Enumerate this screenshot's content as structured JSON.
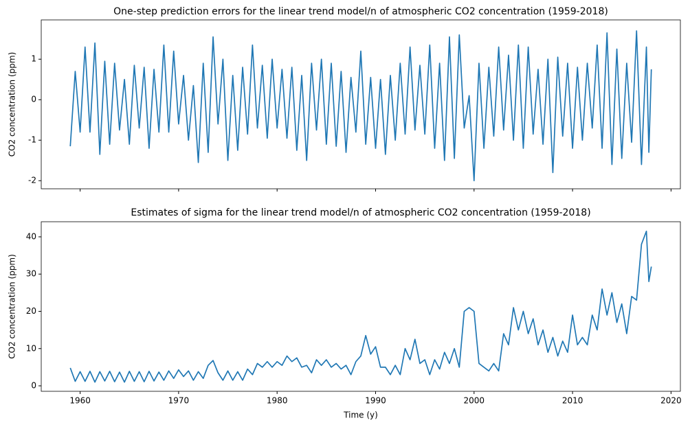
{
  "chart_data": [
    {
      "type": "line",
      "title": "One-step prediction errors for the linear trend model/n of atmospheric CO2 concentration (1959-2018)",
      "ylabel": "CO2 concentration (ppm)",
      "color": "#1f77b4",
      "xlim": [
        1956.05,
        2020.95
      ],
      "xticks": [
        1960,
        1970,
        1980,
        1990,
        2000,
        2010,
        2020
      ],
      "ylim": [
        -2.2,
        1.97
      ],
      "yticks": [
        -2,
        -1,
        0,
        1
      ],
      "x": [
        1959,
        1959.5,
        1960,
        1960.5,
        1961,
        1961.5,
        1962,
        1962.5,
        1963,
        1963.5,
        1964,
        1964.5,
        1965,
        1965.5,
        1966,
        1966.5,
        1967,
        1967.5,
        1968,
        1968.5,
        1969,
        1969.5,
        1970,
        1970.5,
        1971,
        1971.5,
        1972,
        1972.5,
        1973,
        1973.5,
        1974,
        1974.5,
        1975,
        1975.5,
        1976,
        1976.5,
        1977,
        1977.5,
        1978,
        1978.5,
        1979,
        1979.5,
        1980,
        1980.5,
        1981,
        1981.5,
        1982,
        1982.5,
        1983,
        1983.5,
        1984,
        1984.5,
        1985,
        1985.5,
        1986,
        1986.5,
        1987,
        1987.5,
        1988,
        1988.5,
        1989,
        1989.5,
        1990,
        1990.5,
        1991,
        1991.5,
        1992,
        1992.5,
        1993,
        1993.5,
        1994,
        1994.5,
        1995,
        1995.5,
        1996,
        1996.5,
        1997,
        1997.5,
        1998,
        1998.5,
        1999,
        1999.5,
        2000,
        2000.5,
        2001,
        2001.5,
        2002,
        2002.5,
        2003,
        2003.5,
        2004,
        2004.5,
        2005,
        2005.5,
        2006,
        2006.5,
        2007,
        2007.5,
        2008,
        2008.5,
        2009,
        2009.5,
        2010,
        2010.5,
        2011,
        2011.5,
        2012,
        2012.5,
        2013,
        2013.5,
        2014,
        2014.5,
        2015,
        2015.5,
        2016,
        2016.5,
        2017,
        2017.5,
        2017.75,
        2018
      ],
      "values": [
        -1.15,
        0.7,
        -0.8,
        1.3,
        -0.8,
        1.4,
        -1.35,
        0.95,
        -1.1,
        0.9,
        -0.75,
        0.5,
        -1.1,
        0.85,
        -0.7,
        0.8,
        -1.2,
        0.75,
        -0.8,
        1.35,
        -0.8,
        1.2,
        -0.6,
        0.6,
        -1.0,
        0.35,
        -1.55,
        0.9,
        -1.3,
        1.55,
        -0.6,
        1.0,
        -1.5,
        0.6,
        -1.25,
        0.8,
        -0.85,
        1.35,
        -0.7,
        0.85,
        -0.95,
        1.0,
        -0.7,
        0.75,
        -0.95,
        0.8,
        -1.25,
        0.6,
        -1.5,
        0.9,
        -0.75,
        1.0,
        -1.1,
        0.9,
        -1.15,
        0.7,
        -1.3,
        0.55,
        -0.8,
        1.2,
        -1.1,
        0.55,
        -1.2,
        0.5,
        -1.35,
        0.6,
        -1.0,
        0.9,
        -0.85,
        1.3,
        -0.75,
        0.85,
        -0.85,
        1.35,
        -1.2,
        0.9,
        -1.5,
        1.55,
        -1.45,
        1.6,
        -0.7,
        0.1,
        -2.0,
        0.9,
        -1.2,
        0.8,
        -0.9,
        1.3,
        -0.75,
        1.1,
        -1.0,
        1.35,
        -1.2,
        1.3,
        -0.85,
        0.75,
        -1.1,
        1.0,
        -1.8,
        1.05,
        -0.9,
        0.9,
        -1.2,
        0.8,
        -1.0,
        0.9,
        -0.7,
        1.35,
        -1.2,
        1.65,
        -1.6,
        1.25,
        -1.45,
        0.9,
        -1.05,
        1.7,
        -1.6,
        1.3,
        -1.3,
        0.75
      ]
    },
    {
      "type": "line",
      "title": "Estimates of sigma for the linear trend model/n of atmospheric CO2 concentration (1959-2018)",
      "ylabel": "CO2 concentration (ppm)",
      "xlabel": "Time (y)",
      "color": "#1f77b4",
      "xlim": [
        1956.05,
        2020.95
      ],
      "xticks": [
        1960,
        1970,
        1980,
        1990,
        2000,
        2010,
        2020
      ],
      "ylim": [
        -1.47,
        44.05
      ],
      "yticks": [
        0,
        10,
        20,
        30,
        40
      ],
      "x": [
        1959,
        1959.5,
        1960,
        1960.5,
        1961,
        1961.5,
        1962,
        1962.5,
        1963,
        1963.5,
        1964,
        1964.5,
        1965,
        1965.5,
        1966,
        1966.5,
        1967,
        1967.5,
        1968,
        1968.5,
        1969,
        1969.5,
        1970,
        1970.5,
        1971,
        1971.5,
        1972,
        1972.5,
        1973,
        1973.5,
        1974,
        1974.5,
        1975,
        1975.5,
        1976,
        1976.5,
        1977,
        1977.5,
        1978,
        1978.5,
        1979,
        1979.5,
        1980,
        1980.5,
        1981,
        1981.5,
        1982,
        1982.5,
        1983,
        1983.5,
        1984,
        1984.5,
        1985,
        1985.5,
        1986,
        1986.5,
        1987,
        1987.5,
        1988,
        1988.5,
        1989,
        1989.5,
        1990,
        1990.5,
        1991,
        1991.5,
        1992,
        1992.5,
        1993,
        1993.5,
        1994,
        1994.5,
        1995,
        1995.5,
        1996,
        1996.5,
        1997,
        1997.5,
        1998,
        1998.5,
        1999,
        1999.5,
        2000,
        2000.5,
        2001,
        2001.5,
        2002,
        2002.5,
        2003,
        2003.5,
        2004,
        2004.5,
        2005,
        2005.5,
        2006,
        2006.5,
        2007,
        2007.5,
        2008,
        2008.5,
        2009,
        2009.5,
        2010,
        2010.5,
        2011,
        2011.5,
        2012,
        2012.5,
        2013,
        2013.5,
        2014,
        2014.5,
        2015,
        2015.5,
        2016,
        2016.5,
        2017,
        2017.5,
        2017.75,
        2018
      ],
      "values": [
        4.8,
        1.2,
        3.8,
        1.2,
        3.9,
        1.0,
        3.8,
        1.3,
        3.9,
        1.1,
        3.7,
        1.0,
        3.9,
        1.2,
        3.8,
        1.1,
        3.9,
        1.3,
        3.7,
        1.5,
        4.0,
        2.0,
        4.3,
        2.5,
        4.0,
        1.5,
        3.8,
        2.0,
        5.5,
        6.8,
        3.5,
        1.5,
        4.0,
        1.5,
        3.8,
        1.5,
        4.5,
        3.0,
        6.0,
        5.0,
        6.5,
        5.0,
        6.5,
        5.5,
        8.0,
        6.5,
        7.5,
        5.0,
        5.5,
        3.5,
        7.0,
        5.5,
        7.0,
        5.0,
        6.0,
        4.5,
        5.5,
        3.0,
        6.5,
        8.0,
        13.5,
        8.5,
        10.5,
        5.0,
        5.0,
        3.0,
        5.5,
        3.0,
        10.0,
        7.0,
        12.5,
        6.0,
        7.0,
        3.0,
        7.0,
        4.5,
        9.0,
        6.0,
        10.0,
        5.0,
        20.0,
        21.0,
        20.0,
        6.0,
        5.0,
        4.0,
        6.0,
        4.0,
        14.0,
        11.0,
        21.0,
        15.0,
        20.0,
        14.0,
        18.0,
        11.0,
        15.0,
        9.0,
        13.0,
        8.0,
        12.0,
        9.0,
        19.0,
        11.0,
        13.0,
        11.0,
        19.0,
        15.0,
        26.0,
        19.0,
        25.0,
        17.0,
        22.0,
        14.0,
        24.0,
        23.0,
        38.0,
        41.5,
        28.0,
        32.0
      ]
    }
  ]
}
